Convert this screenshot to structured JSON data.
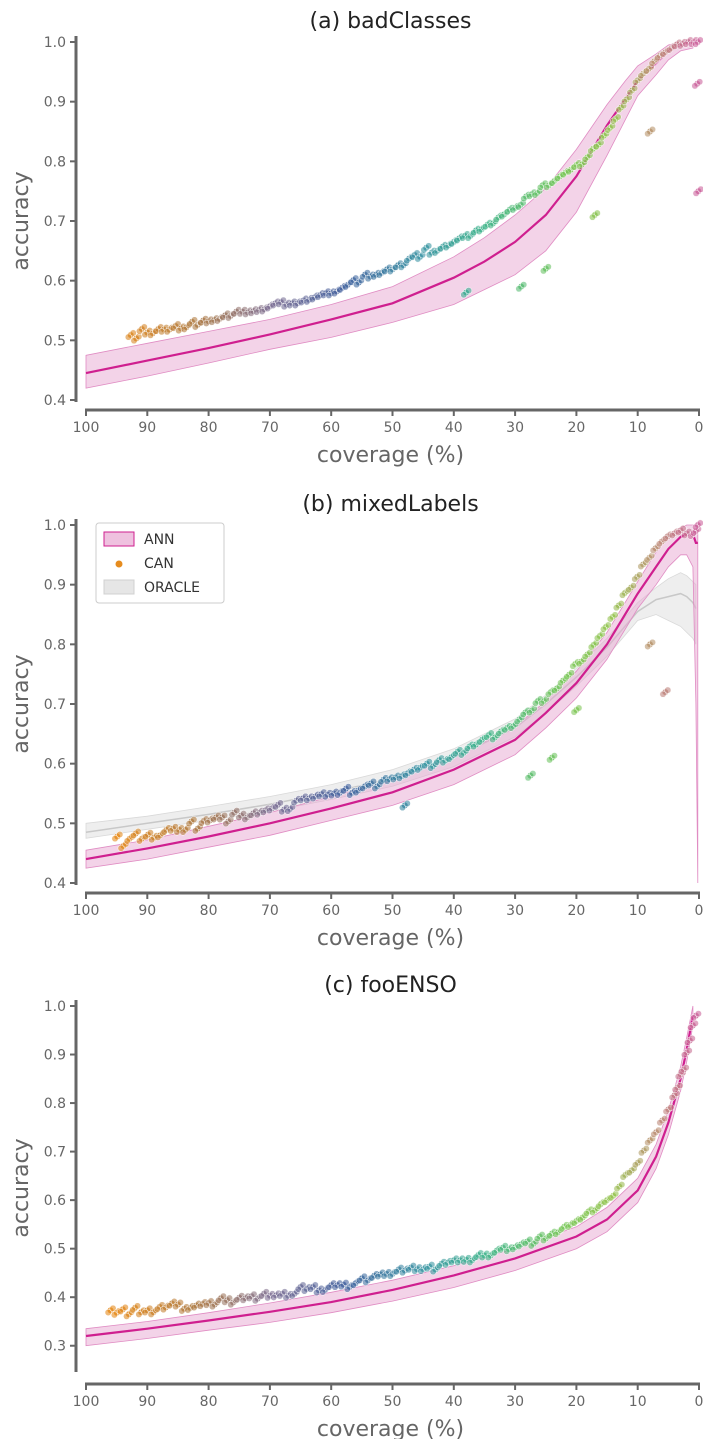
{
  "chart_data": [
    {
      "type": "scatter",
      "title": "(a) badClasses",
      "xlabel": "coverage (%)",
      "ylabel": "accuracy",
      "xlim": [
        100,
        0
      ],
      "ylim": [
        0.4,
        1.0
      ],
      "xticks": [
        100,
        90,
        80,
        70,
        60,
        50,
        40,
        30,
        20,
        10,
        0
      ],
      "yticks": [
        0.4,
        0.5,
        0.6,
        0.7,
        0.8,
        0.9,
        1.0
      ],
      "legend": null,
      "series": [
        {
          "kind": "line_band",
          "color": "#cf1f8f",
          "x": [
            100,
            90,
            80,
            70,
            60,
            50,
            40,
            35,
            30,
            25,
            20,
            15,
            12,
            10,
            7,
            5,
            3,
            1
          ],
          "y": [
            0.445,
            0.466,
            0.487,
            0.51,
            0.535,
            0.562,
            0.605,
            0.632,
            0.665,
            0.71,
            0.775,
            0.86,
            0.905,
            0.935,
            0.965,
            0.985,
            0.995,
            1.0
          ],
          "lower": [
            0.42,
            0.44,
            0.462,
            0.485,
            0.505,
            0.53,
            0.56,
            0.585,
            0.61,
            0.65,
            0.715,
            0.81,
            0.87,
            0.91,
            0.945,
            0.97,
            0.985,
            0.99
          ],
          "upper": [
            0.475,
            0.495,
            0.515,
            0.535,
            0.56,
            0.59,
            0.64,
            0.672,
            0.71,
            0.755,
            0.82,
            0.895,
            0.935,
            0.96,
            0.98,
            0.995,
            1.0,
            1.0
          ]
        },
        {
          "kind": "points",
          "colored_by_coverage": true,
          "x": [
            92.7,
            91.8,
            90.9,
            90.0,
            89.1,
            88.2,
            87.3,
            86.4,
            85.4,
            84.5,
            83.6,
            82.7,
            81.8,
            80.9,
            80.0,
            79.1,
            78.2,
            77.3,
            76.4,
            75.5,
            74.5,
            73.6,
            72.7,
            71.8,
            70.9,
            70.0,
            69.1,
            68.2,
            67.3,
            66.4,
            65.5,
            64.5,
            63.6,
            62.7,
            61.8,
            60.9,
            60.0,
            59.1,
            58.2,
            57.3,
            56.4,
            55.5,
            54.5,
            53.6,
            52.7,
            51.8,
            50.9,
            50.0,
            49.1,
            48.2,
            47.3,
            46.4,
            45.5,
            44.5,
            43.6,
            42.7,
            41.8,
            40.9,
            40.0,
            39.1,
            38.2,
            37.3,
            36.4,
            35.5,
            34.5,
            33.6,
            32.7,
            31.8,
            30.9,
            30.0,
            29.1,
            28.2,
            27.3,
            26.4,
            25.5,
            24.5,
            23.6,
            22.7,
            21.8,
            20.9,
            20.0,
            19.1,
            18.2,
            17.3,
            16.4,
            15.5,
            14.5,
            13.6,
            12.7,
            11.8,
            10.9,
            10.0,
            9.1,
            8.2,
            7.3,
            6.4,
            5.5,
            4.5,
            3.6,
            2.7,
            1.8,
            0.9,
            0.3,
            0.1,
            38.0,
            29.0,
            25.0,
            17.0,
            8.0,
            0.2
          ],
          "y": [
            0.509,
            0.503,
            0.519,
            0.513,
            0.512,
            0.519,
            0.518,
            0.518,
            0.524,
            0.52,
            0.522,
            0.531,
            0.526,
            0.533,
            0.532,
            0.534,
            0.536,
            0.542,
            0.541,
            0.548,
            0.548,
            0.547,
            0.549,
            0.551,
            0.552,
            0.557,
            0.562,
            0.564,
            0.56,
            0.562,
            0.562,
            0.567,
            0.568,
            0.572,
            0.576,
            0.579,
            0.579,
            0.582,
            0.588,
            0.593,
            0.601,
            0.597,
            0.61,
            0.607,
            0.61,
            0.613,
            0.619,
            0.619,
            0.626,
            0.626,
            0.637,
            0.643,
            0.64,
            0.655,
            0.647,
            0.65,
            0.657,
            0.659,
            0.665,
            0.671,
            0.675,
            0.675,
            0.684,
            0.686,
            0.694,
            0.696,
            0.706,
            0.711,
            0.719,
            0.722,
            0.727,
            0.741,
            0.745,
            0.747,
            0.76,
            0.76,
            0.767,
            0.775,
            0.781,
            0.786,
            0.794,
            0.795,
            0.807,
            0.821,
            0.828,
            0.843,
            0.856,
            0.871,
            0.89,
            0.904,
            0.919,
            0.936,
            0.947,
            0.955,
            0.968,
            0.977,
            0.983,
            0.99,
            0.996,
            0.997,
            1.0,
            1.0,
            0.93,
            0.75,
            0.58,
            0.59,
            0.62,
            0.71,
            0.85,
            1.0
          ]
        }
      ]
    },
    {
      "type": "scatter",
      "title": "(b) mixedLabels",
      "xlabel": "coverage (%)",
      "ylabel": "accuracy",
      "xlim": [
        100,
        0
      ],
      "ylim": [
        0.4,
        1.0
      ],
      "xticks": [
        100,
        90,
        80,
        70,
        60,
        50,
        40,
        30,
        20,
        10,
        0
      ],
      "yticks": [
        0.4,
        0.5,
        0.6,
        0.7,
        0.8,
        0.9,
        1.0
      ],
      "legend": {
        "position": "top-left",
        "entries": [
          "ANN",
          "CAN",
          "ORACLE"
        ]
      },
      "series": [
        {
          "name": "ORACLE",
          "kind": "band",
          "color": "#b9b9b9",
          "x": [
            100,
            90,
            80,
            70,
            60,
            50,
            40,
            30,
            25,
            20,
            15,
            10,
            7,
            5,
            3,
            2,
            1,
            0.5
          ],
          "y": [
            0.485,
            0.5,
            0.515,
            0.532,
            0.552,
            0.575,
            0.61,
            0.66,
            0.7,
            0.745,
            0.795,
            0.855,
            0.875,
            0.88,
            0.885,
            0.88,
            0.87,
            0.86
          ],
          "lower": [
            0.475,
            0.49,
            0.505,
            0.52,
            0.54,
            0.562,
            0.595,
            0.645,
            0.685,
            0.73,
            0.78,
            0.84,
            0.85,
            0.84,
            0.83,
            0.82,
            0.81,
            0.8
          ],
          "upper": [
            0.5,
            0.512,
            0.528,
            0.545,
            0.565,
            0.59,
            0.625,
            0.675,
            0.715,
            0.76,
            0.81,
            0.87,
            0.895,
            0.91,
            0.92,
            0.915,
            0.905,
            0.9
          ]
        },
        {
          "name": "ANN",
          "kind": "line_band",
          "color": "#cf1f8f",
          "x": [
            100,
            90,
            80,
            70,
            60,
            50,
            40,
            30,
            25,
            20,
            15,
            10,
            7,
            5,
            3,
            2,
            1,
            0.5,
            0.2
          ],
          "y": [
            0.44,
            0.458,
            0.478,
            0.5,
            0.525,
            0.552,
            0.59,
            0.64,
            0.685,
            0.735,
            0.8,
            0.885,
            0.93,
            0.96,
            0.98,
            0.985,
            0.985,
            0.97,
            0.97
          ],
          "lower": [
            0.425,
            0.44,
            0.46,
            0.48,
            0.505,
            0.53,
            0.565,
            0.615,
            0.66,
            0.71,
            0.775,
            0.86,
            0.9,
            0.93,
            0.95,
            0.95,
            0.93,
            0.7,
            0.4
          ],
          "upper": [
            0.455,
            0.472,
            0.495,
            0.518,
            0.545,
            0.572,
            0.612,
            0.662,
            0.705,
            0.755,
            0.82,
            0.905,
            0.955,
            0.98,
            0.995,
            1.0,
            1.0,
            1.0,
            1.0
          ]
        },
        {
          "name": "CAN",
          "kind": "points",
          "colored_by_coverage": true,
          "x": [
            94.9,
            93.9,
            92.9,
            91.9,
            90.9,
            89.9,
            88.9,
            87.9,
            86.9,
            85.8,
            84.8,
            83.8,
            82.8,
            81.8,
            80.8,
            79.8,
            78.8,
            77.8,
            76.8,
            75.8,
            74.7,
            73.7,
            72.7,
            71.7,
            70.7,
            69.7,
            68.7,
            67.7,
            66.7,
            65.7,
            64.6,
            63.6,
            62.6,
            61.6,
            60.6,
            59.6,
            58.6,
            57.6,
            56.6,
            55.6,
            54.5,
            53.5,
            52.5,
            51.5,
            50.5,
            49.5,
            48.5,
            47.5,
            46.5,
            45.5,
            44.4,
            43.4,
            42.4,
            41.4,
            40.4,
            39.4,
            38.4,
            37.4,
            36.4,
            35.4,
            34.3,
            33.3,
            32.3,
            31.3,
            30.3,
            29.3,
            28.3,
            27.3,
            26.3,
            25.3,
            24.2,
            23.2,
            22.2,
            21.2,
            20.2,
            19.2,
            18.2,
            17.2,
            16.2,
            15.2,
            14.1,
            13.1,
            12.1,
            11.1,
            10.1,
            9.1,
            8.1,
            7.1,
            6.1,
            5.1,
            4.0,
            3.0,
            2.0,
            1.0,
            0.5,
            0.2,
            27.5,
            24.0,
            20.0,
            8.0,
            5.5,
            48.0
          ],
          "y": [
            0.478,
            0.462,
            0.474,
            0.483,
            0.474,
            0.481,
            0.476,
            0.48,
            0.489,
            0.491,
            0.489,
            0.489,
            0.503,
            0.491,
            0.504,
            0.505,
            0.51,
            0.51,
            0.503,
            0.518,
            0.513,
            0.51,
            0.517,
            0.518,
            0.522,
            0.525,
            0.531,
            0.523,
            0.524,
            0.538,
            0.542,
            0.542,
            0.545,
            0.549,
            0.548,
            0.55,
            0.551,
            0.558,
            0.551,
            0.555,
            0.562,
            0.567,
            0.562,
            0.573,
            0.574,
            0.577,
            0.579,
            0.584,
            0.59,
            0.593,
            0.6,
            0.596,
            0.606,
            0.605,
            0.611,
            0.62,
            0.618,
            0.629,
            0.632,
            0.64,
            0.648,
            0.644,
            0.654,
            0.66,
            0.663,
            0.674,
            0.686,
            0.689,
            0.705,
            0.705,
            0.72,
            0.726,
            0.739,
            0.749,
            0.767,
            0.771,
            0.783,
            0.799,
            0.814,
            0.829,
            0.846,
            0.865,
            0.886,
            0.895,
            0.913,
            0.934,
            0.945,
            0.961,
            0.972,
            0.981,
            0.986,
            0.991,
            0.986,
            0.985,
            0.99,
            1.0,
            0.58,
            0.61,
            0.69,
            0.8,
            0.72,
            0.53
          ]
        }
      ]
    },
    {
      "type": "scatter",
      "title": "(c) fooENSO",
      "xlabel": "coverage (%)",
      "ylabel": "accuracy",
      "xlim": [
        100,
        0
      ],
      "ylim": [
        0.25,
        1.0
      ],
      "xticks": [
        100,
        90,
        80,
        70,
        60,
        50,
        40,
        30,
        20,
        10,
        0
      ],
      "yticks": [
        0.3,
        0.4,
        0.5,
        0.6,
        0.7,
        0.8,
        0.9,
        1.0
      ],
      "legend": null,
      "series": [
        {
          "kind": "line_band",
          "color": "#cf1f8f",
          "x": [
            100,
            90,
            80,
            70,
            60,
            50,
            40,
            30,
            20,
            15,
            10,
            7,
            5,
            3,
            2,
            1
          ],
          "y": [
            0.32,
            0.335,
            0.352,
            0.37,
            0.39,
            0.415,
            0.445,
            0.48,
            0.525,
            0.56,
            0.62,
            0.69,
            0.76,
            0.85,
            0.91,
            0.98
          ],
          "lower": [
            0.3,
            0.315,
            0.332,
            0.348,
            0.368,
            0.392,
            0.42,
            0.455,
            0.5,
            0.535,
            0.595,
            0.665,
            0.735,
            0.825,
            0.885,
            0.96
          ],
          "upper": [
            0.335,
            0.35,
            0.368,
            0.388,
            0.41,
            0.435,
            0.465,
            0.5,
            0.545,
            0.585,
            0.645,
            0.715,
            0.785,
            0.875,
            0.935,
            1.0
          ]
        },
        {
          "kind": "points",
          "colored_by_coverage": true,
          "x": [
            96.0,
            95.0,
            94.0,
            93.0,
            92.0,
            91.0,
            90.0,
            89.0,
            88.0,
            87.0,
            86.0,
            85.0,
            84.0,
            83.0,
            82.0,
            81.0,
            80.0,
            79.0,
            78.0,
            77.0,
            76.0,
            75.0,
            74.0,
            73.0,
            72.0,
            71.0,
            70.0,
            69.0,
            68.0,
            67.0,
            66.0,
            65.0,
            64.0,
            63.0,
            62.0,
            61.0,
            60.0,
            59.0,
            58.0,
            57.0,
            56.0,
            55.0,
            54.0,
            53.0,
            52.0,
            51.0,
            50.0,
            49.0,
            48.0,
            47.0,
            46.0,
            45.0,
            44.0,
            43.0,
            42.0,
            41.0,
            40.0,
            39.0,
            38.0,
            37.0,
            36.0,
            35.0,
            34.0,
            33.0,
            32.0,
            31.0,
            30.0,
            29.0,
            28.0,
            27.0,
            26.0,
            25.0,
            24.0,
            23.0,
            22.0,
            21.0,
            20.0,
            19.0,
            18.0,
            17.0,
            16.0,
            15.0,
            14.0,
            13.0,
            12.0,
            11.0,
            10.0,
            9.0,
            8.0,
            7.0,
            6.0,
            5.0,
            4.0,
            3.5,
            3.0,
            2.5,
            2.0,
            1.5,
            1.0,
            0.5
          ],
          "y": [
            0.373,
            0.368,
            0.375,
            0.365,
            0.378,
            0.369,
            0.373,
            0.369,
            0.38,
            0.379,
            0.387,
            0.385,
            0.376,
            0.378,
            0.383,
            0.386,
            0.388,
            0.385,
            0.398,
            0.394,
            0.389,
            0.399,
            0.398,
            0.402,
            0.397,
            0.407,
            0.403,
            0.404,
            0.407,
            0.403,
            0.407,
            0.421,
            0.417,
            0.421,
            0.414,
            0.415,
            0.425,
            0.425,
            0.426,
            0.421,
            0.429,
            0.439,
            0.435,
            0.444,
            0.447,
            0.448,
            0.448,
            0.457,
            0.455,
            0.461,
            0.458,
            0.458,
            0.463,
            0.457,
            0.469,
            0.471,
            0.476,
            0.476,
            0.477,
            0.476,
            0.487,
            0.486,
            0.486,
            0.496,
            0.502,
            0.499,
            0.503,
            0.509,
            0.515,
            0.51,
            0.525,
            0.521,
            0.531,
            0.534,
            0.545,
            0.549,
            0.557,
            0.564,
            0.577,
            0.579,
            0.592,
            0.6,
            0.609,
            0.628,
            0.652,
            0.661,
            0.677,
            0.702,
            0.723,
            0.74,
            0.764,
            0.787,
            0.816,
            0.832,
            0.859,
            0.869,
            0.904,
            0.929,
            0.96,
            0.98
          ]
        }
      ]
    }
  ]
}
